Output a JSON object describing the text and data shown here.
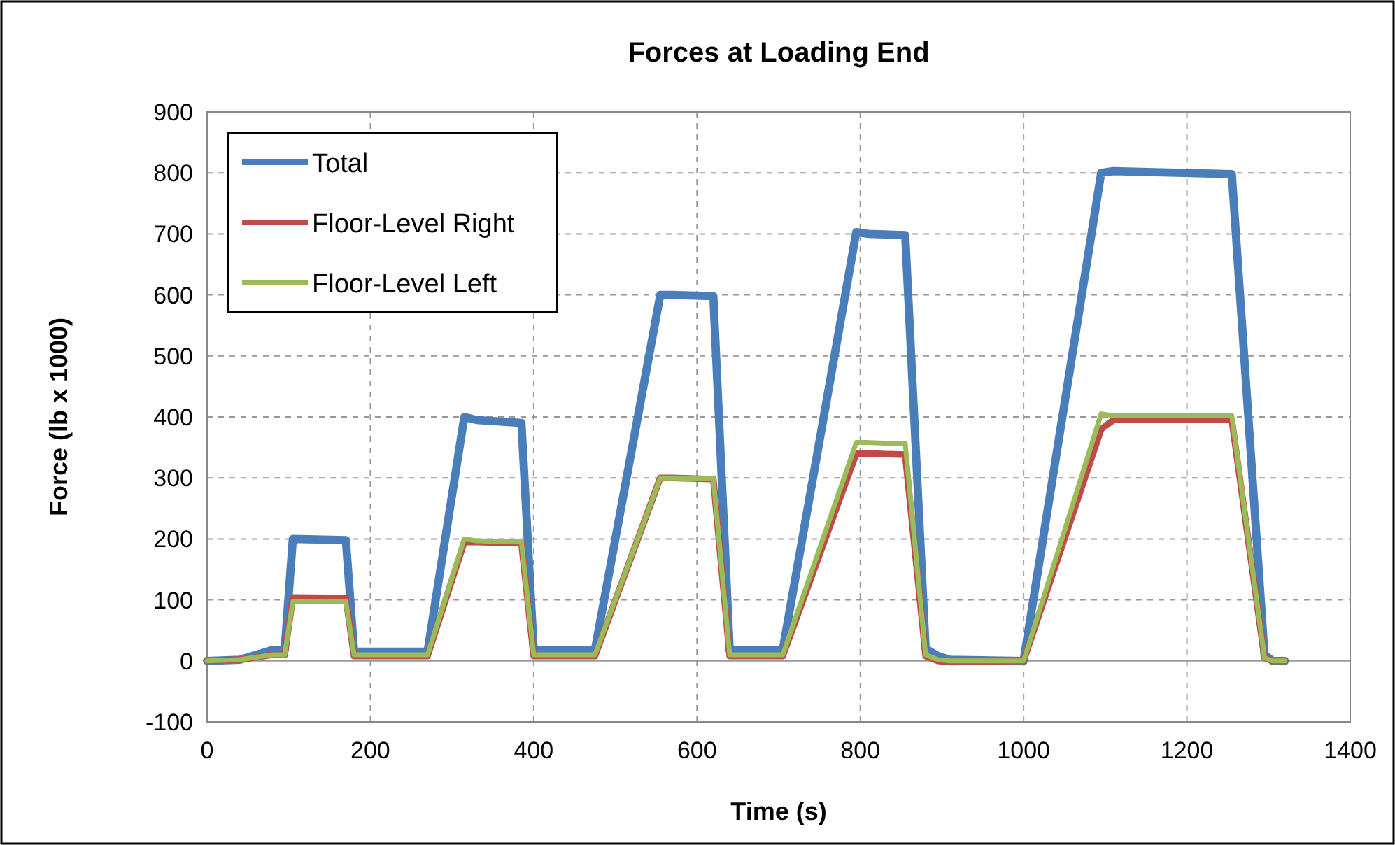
{
  "chart_data": {
    "type": "line",
    "title": "Forces at Loading  End",
    "xlabel": "Time (s)",
    "ylabel": "Force (lb x 1000)",
    "xlim": [
      0,
      1400
    ],
    "xticks": [
      0,
      200,
      400,
      600,
      800,
      1000,
      1200,
      1400
    ],
    "ylim": [
      -100,
      900
    ],
    "yticks": [
      -100,
      0,
      100,
      200,
      300,
      400,
      500,
      600,
      700,
      800,
      900
    ],
    "grid": true,
    "legend": "top left",
    "marker": "none",
    "line_style": "solid",
    "series": [
      {
        "name": "Total",
        "color": "#4a7ebb",
        "x": [
          0,
          40,
          60,
          80,
          95,
          105,
          170,
          180,
          270,
          315,
          330,
          385,
          400,
          475,
          555,
          570,
          620,
          640,
          705,
          795,
          810,
          855,
          880,
          895,
          910,
          1000,
          1095,
          1110,
          1255,
          1295,
          1305,
          1320
        ],
        "values": [
          0,
          2,
          10,
          18,
          18,
          200,
          198,
          15,
          15,
          400,
          395,
          390,
          18,
          18,
          600,
          600,
          598,
          18,
          18,
          703,
          700,
          698,
          20,
          8,
          2,
          0,
          800,
          803,
          798,
          10,
          0,
          0
        ]
      },
      {
        "name": "Floor-Level Right",
        "color": "#be4b48",
        "x": [
          0,
          40,
          60,
          80,
          95,
          105,
          170,
          180,
          270,
          315,
          330,
          385,
          400,
          475,
          555,
          570,
          620,
          640,
          705,
          795,
          810,
          855,
          880,
          895,
          910,
          1000,
          1095,
          1110,
          1255,
          1295,
          1305,
          1320
        ],
        "values": [
          0,
          2,
          6,
          10,
          10,
          104,
          103,
          8,
          8,
          195,
          195,
          193,
          8,
          8,
          300,
          300,
          298,
          8,
          8,
          340,
          340,
          338,
          8,
          0,
          -2,
          0,
          380,
          395,
          395,
          5,
          0,
          0
        ]
      },
      {
        "name": "Floor-Level Left",
        "color": "#9bbb59",
        "x": [
          0,
          40,
          60,
          80,
          95,
          105,
          170,
          180,
          270,
          315,
          330,
          385,
          400,
          475,
          555,
          570,
          620,
          640,
          705,
          795,
          810,
          855,
          880,
          895,
          910,
          1000,
          1095,
          1110,
          1255,
          1295,
          1305,
          1320
        ],
        "values": [
          0,
          2,
          6,
          10,
          10,
          97,
          97,
          10,
          10,
          200,
          197,
          195,
          10,
          10,
          300,
          300,
          299,
          10,
          10,
          358,
          358,
          356,
          10,
          2,
          0,
          0,
          405,
          402,
          402,
          5,
          0,
          0
        ]
      }
    ]
  }
}
